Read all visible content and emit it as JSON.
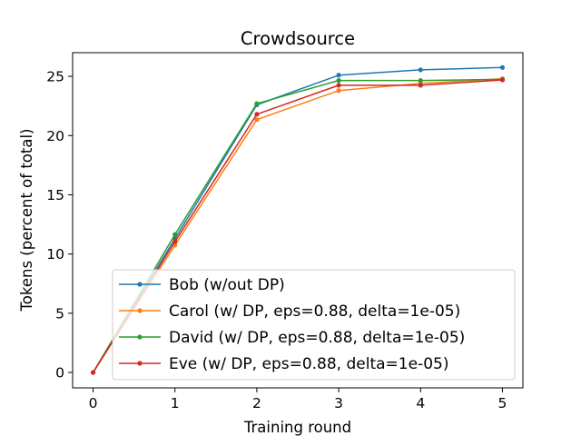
{
  "chart_data": {
    "type": "line",
    "title": "Crowdsource",
    "xlabel": "Training round",
    "ylabel": "Tokens (percent of total)",
    "x": [
      0,
      1,
      2,
      3,
      4,
      5
    ],
    "xlim": [
      -0.25,
      5.25
    ],
    "ylim": [
      -1.3,
      27.0
    ],
    "xticks": [
      0,
      1,
      2,
      3,
      4,
      5
    ],
    "yticks": [
      0,
      5,
      10,
      15,
      20,
      25
    ],
    "grid": false,
    "legend_position": "lower-right",
    "series": [
      {
        "name": "Bob (w/out DP)",
        "color": "#1f77b4",
        "values": [
          0,
          11.3,
          22.6,
          25.1,
          25.55,
          25.75
        ]
      },
      {
        "name": "Carol (w/ DP, eps=0.88, delta=1e-05)",
        "color": "#ff7f0e",
        "values": [
          0,
          10.75,
          21.35,
          23.8,
          24.4,
          24.8
        ]
      },
      {
        "name": "David (w/ DP, eps=0.88, delta=1e-05)",
        "color": "#2ca02c",
        "values": [
          0,
          11.65,
          22.7,
          24.65,
          24.65,
          24.75
        ]
      },
      {
        "name": "Eve (w/ DP, eps=0.88, delta=1e-05)",
        "color": "#d62728",
        "values": [
          0,
          11.05,
          21.8,
          24.25,
          24.25,
          24.7
        ]
      }
    ]
  }
}
